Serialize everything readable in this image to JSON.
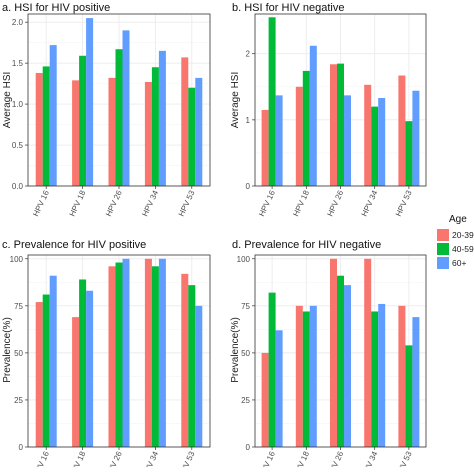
{
  "chart_data": [
    {
      "type": "bar",
      "title": "a. HSI for HIV positive",
      "ylabel": "Average HSI",
      "categories": [
        "HPV 16",
        "HPV 18",
        "HPV 26",
        "HPV 34",
        "HPV 53"
      ],
      "ylim": [
        0,
        2.1
      ],
      "yticks": [
        0.0,
        0.5,
        1.0,
        1.5,
        2.0
      ],
      "ytick_labels": [
        "0.0",
        "0.5",
        "1.0",
        "1.5",
        "2.0"
      ],
      "series": [
        {
          "name": "20-39",
          "values": [
            1.38,
            1.29,
            1.32,
            1.27,
            1.57
          ]
        },
        {
          "name": "40-59",
          "values": [
            1.46,
            1.59,
            1.67,
            1.45,
            1.2
          ]
        },
        {
          "name": "60+",
          "values": [
            1.72,
            2.05,
            1.9,
            1.65,
            1.32
          ]
        }
      ]
    },
    {
      "type": "bar",
      "title": "b. HSI for HIV negative",
      "ylabel": "Average HSI",
      "categories": [
        "HPV 16",
        "HPV 18",
        "HPV 26",
        "HPV 34",
        "HPV 53"
      ],
      "ylim": [
        0,
        2.6
      ],
      "yticks": [
        0,
        1,
        2
      ],
      "ytick_labels": [
        "0",
        "1",
        "2"
      ],
      "series": [
        {
          "name": "20-39",
          "values": [
            1.15,
            1.5,
            1.84,
            1.53,
            1.67
          ]
        },
        {
          "name": "40-59",
          "values": [
            2.55,
            1.74,
            1.85,
            1.2,
            0.98
          ]
        },
        {
          "name": "60+",
          "values": [
            1.37,
            2.12,
            1.37,
            1.33,
            1.44
          ]
        }
      ]
    },
    {
      "type": "bar",
      "title": "c. Prevalence for HIV positive",
      "ylabel": "Prevalence(%)",
      "categories": [
        "HPV 16",
        "HPV 18",
        "HPV 26",
        "HPV 34",
        "HPV 53"
      ],
      "ylim": [
        0,
        102
      ],
      "yticks": [
        0,
        25,
        50,
        75,
        100
      ],
      "ytick_labels": [
        "0",
        "25",
        "50",
        "75",
        "100"
      ],
      "series": [
        {
          "name": "20-39",
          "values": [
            77,
            69,
            96,
            100,
            92
          ]
        },
        {
          "name": "40-59",
          "values": [
            81,
            89,
            98,
            96,
            86
          ]
        },
        {
          "name": "60+",
          "values": [
            91,
            83,
            100,
            100,
            75
          ]
        }
      ]
    },
    {
      "type": "bar",
      "title": "d. Prevalence for HIV negative",
      "ylabel": "Prevalence(%)",
      "categories": [
        "HPV 16",
        "HPV 18",
        "HPV 26",
        "HPV 34",
        "HPV 53"
      ],
      "ylim": [
        0,
        102
      ],
      "yticks": [
        0,
        25,
        50,
        75,
        100
      ],
      "ytick_labels": [
        "0",
        "25",
        "50",
        "75",
        "100"
      ],
      "series": [
        {
          "name": "20-39",
          "values": [
            50,
            75,
            100,
            100,
            75
          ]
        },
        {
          "name": "40-59",
          "values": [
            82,
            72,
            91,
            72,
            54
          ]
        },
        {
          "name": "60+",
          "values": [
            62,
            75,
            86,
            76,
            69
          ]
        }
      ]
    }
  ],
  "legend": {
    "title": "Age",
    "labels": [
      "20-39",
      "40-59",
      "60+"
    ],
    "colors": [
      "#F8766D",
      "#00BA38",
      "#619CFF"
    ],
    "placement": "right"
  },
  "style": {
    "panel_background": "#FFFFFF",
    "gridline_major": "#EBEBEB",
    "gridline_minor": "#F5F5F5",
    "panel_border": "#333333",
    "grid": true
  }
}
